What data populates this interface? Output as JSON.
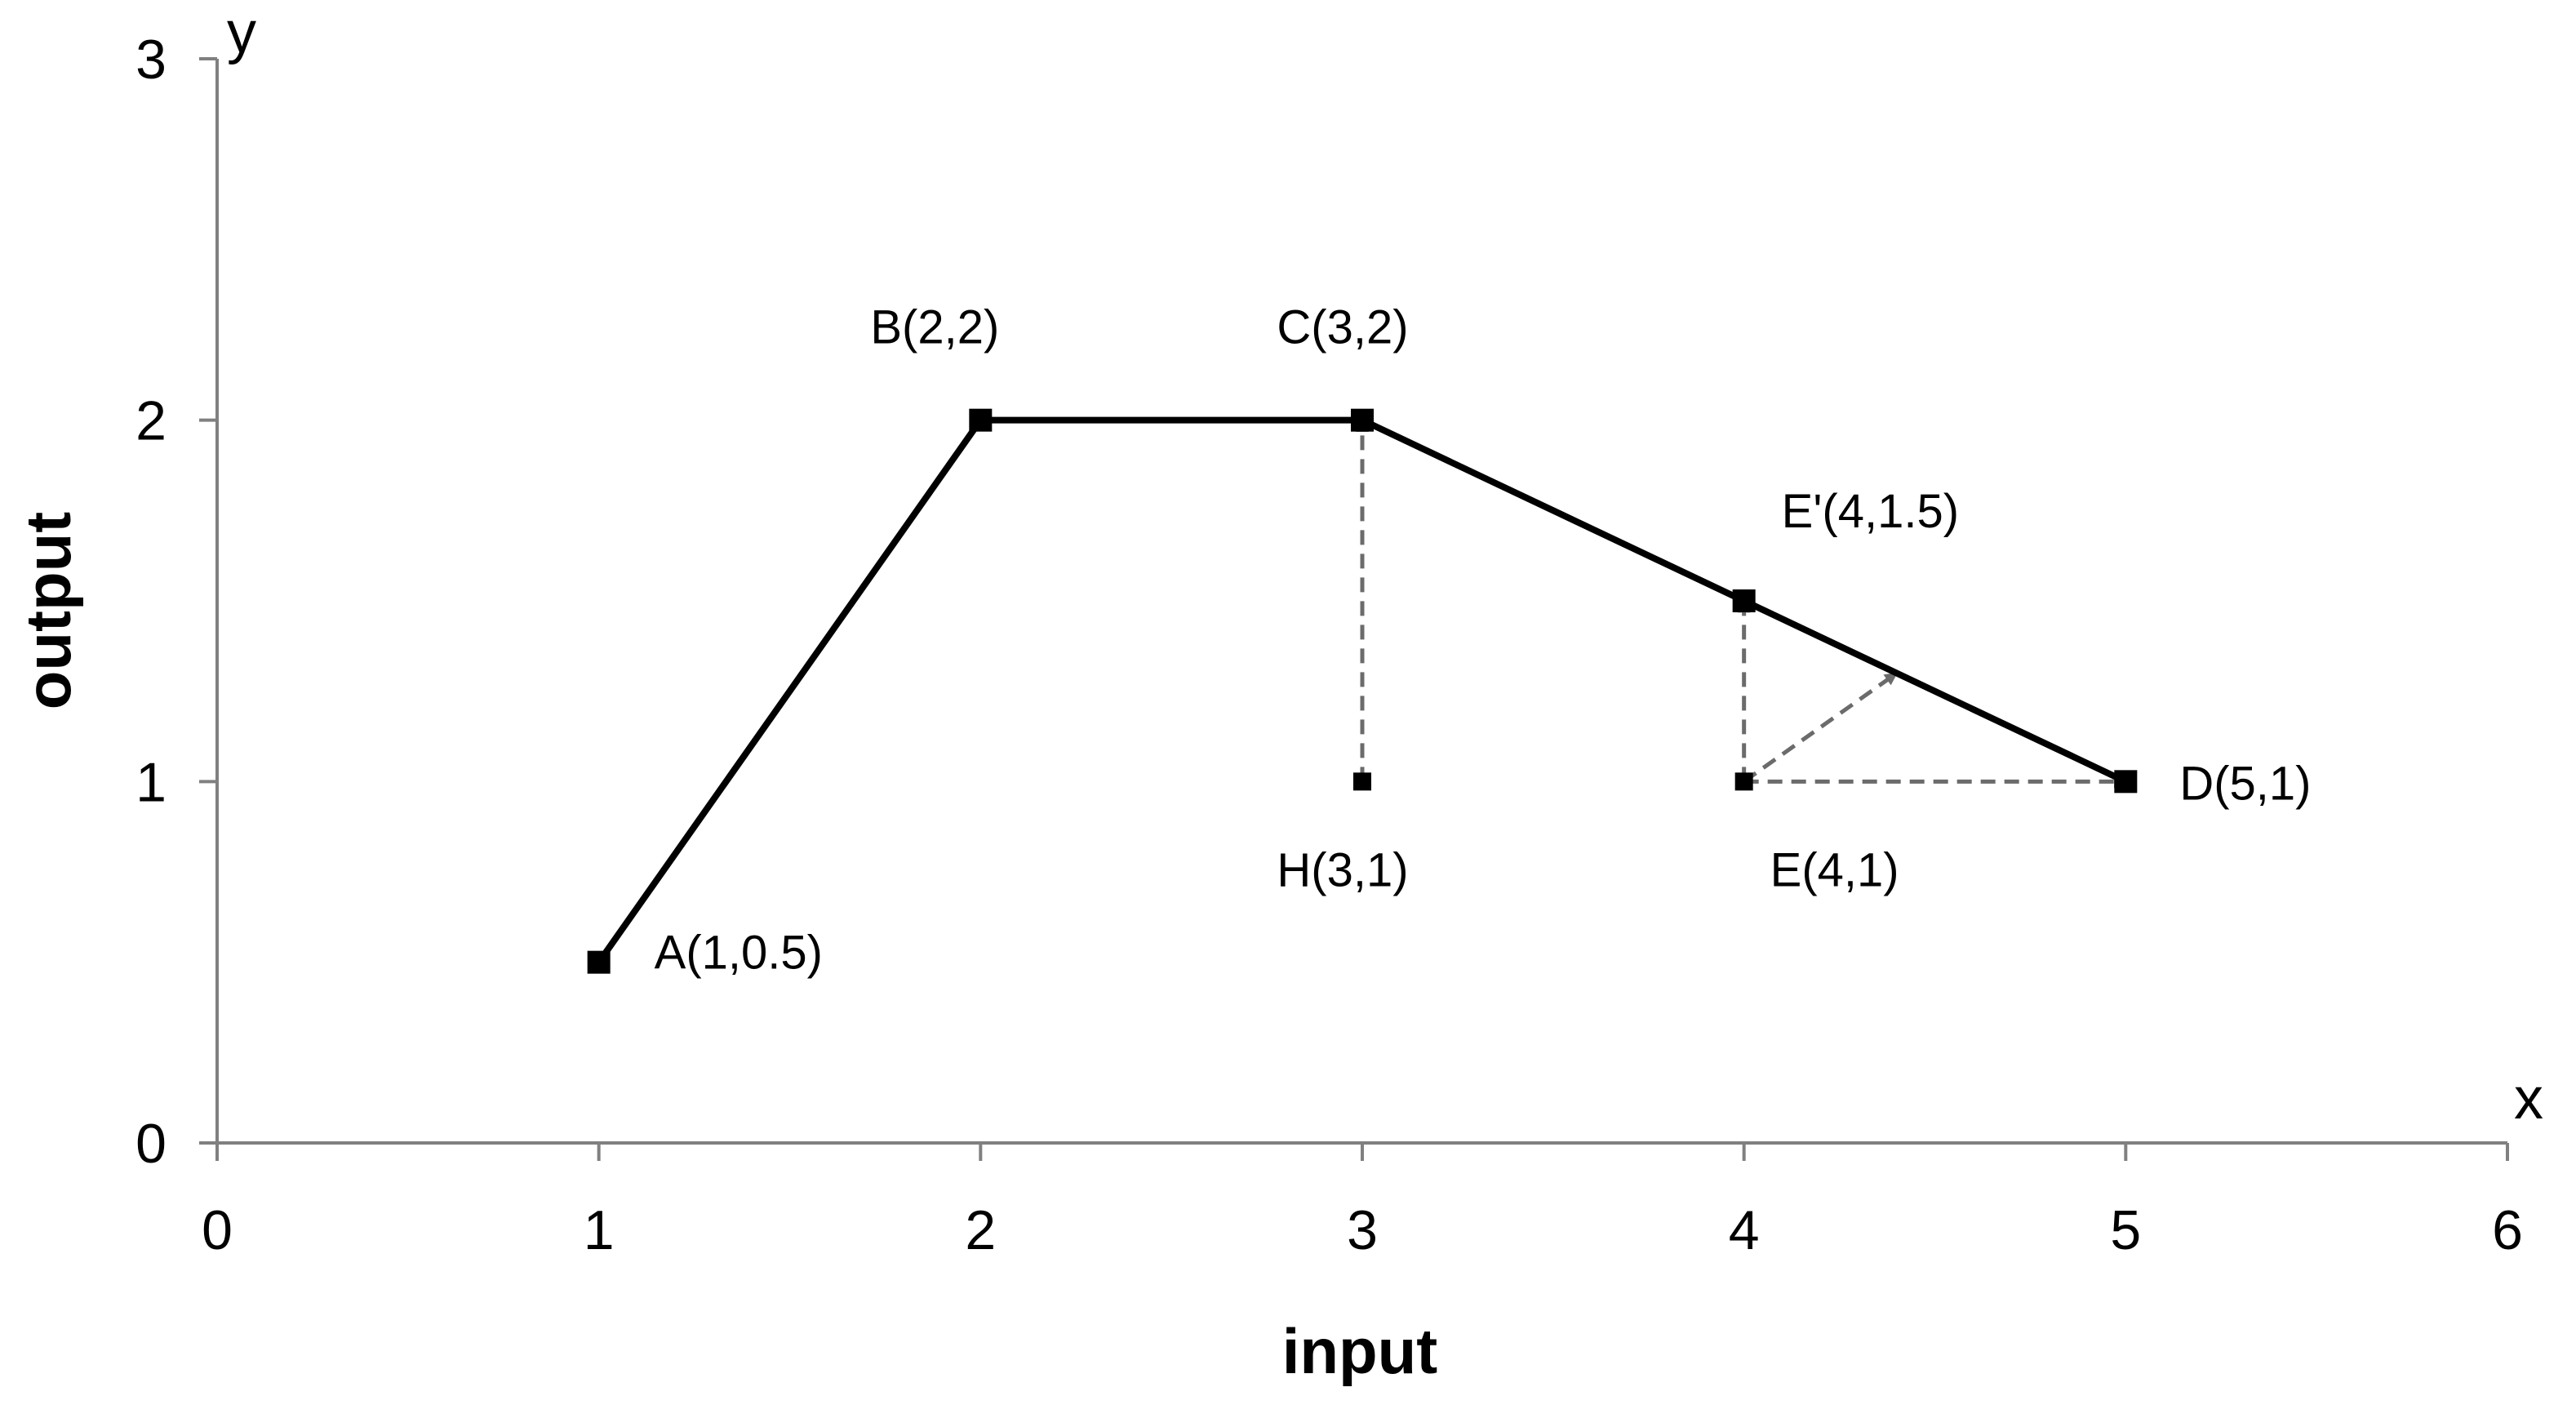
{
  "chart_data": {
    "type": "line",
    "xlabel": "input",
    "ylabel": "output",
    "x_axis_letter": "x",
    "y_axis_letter": "y",
    "xlim": [
      0,
      6
    ],
    "ylim": [
      0,
      3
    ],
    "x_ticks": [
      0,
      1,
      2,
      3,
      4,
      5,
      6
    ],
    "y_ticks": [
      0,
      1,
      2,
      3
    ],
    "grid": false,
    "colors": {
      "frontier": "#000000",
      "projection_arrows": "#6b6b6b",
      "axes": "#808080"
    },
    "frontier": [
      {
        "label": "A(1,0.5)",
        "x": 1,
        "y": 0.5
      },
      {
        "label": "B(2,2)",
        "x": 2,
        "y": 2
      },
      {
        "label": "C(3,2)",
        "x": 3,
        "y": 2
      },
      {
        "label": "E'(4,1.5)",
        "x": 4,
        "y": 1.5
      },
      {
        "label": "D(5,1)",
        "x": 5,
        "y": 1
      }
    ],
    "inefficient_points": [
      {
        "label": "H(3,1)",
        "x": 3,
        "y": 1
      },
      {
        "label": "E(4,1)",
        "x": 4,
        "y": 1
      }
    ],
    "projections": [
      {
        "from": [
          3,
          1
        ],
        "to": [
          3,
          2
        ]
      },
      {
        "from": [
          4,
          1
        ],
        "to": [
          4,
          1.5
        ]
      },
      {
        "from": [
          4,
          1
        ],
        "to": [
          4.4,
          1.3
        ]
      },
      {
        "from": [
          4,
          1
        ],
        "to": [
          5,
          1
        ]
      }
    ]
  }
}
